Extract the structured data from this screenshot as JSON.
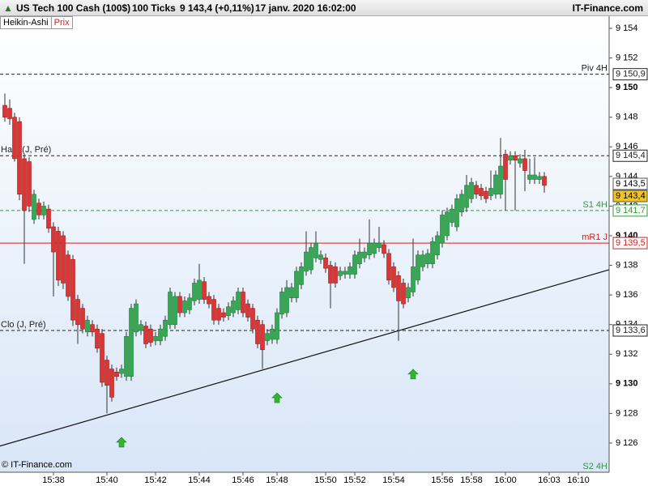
{
  "header": {
    "title": "US Tech 100 Cash (100$)",
    "interval": "100 Ticks",
    "quote": "9 143,4 (+0,11%)",
    "datetime": "17 janv. 2020 16:02:00",
    "brand": "IT-Finance.com",
    "chart_style": "Heikin-Ashi",
    "price_tab": "Prix",
    "copyright": "© IT-Finance.com"
  },
  "chart_data": {
    "type": "candlestick",
    "categories": [
      null,
      null,
      null,
      null,
      null,
      null,
      null,
      null,
      null,
      null,
      "15:38",
      null,
      null,
      null,
      null,
      null,
      null,
      null,
      null,
      null,
      null,
      "15:40",
      null,
      null,
      null,
      null,
      null,
      null,
      null,
      null,
      null,
      "15:42",
      null,
      null,
      null,
      null,
      null,
      null,
      null,
      null,
      "15:44",
      null,
      null,
      null,
      null,
      null,
      null,
      null,
      null,
      "15:46",
      null,
      null,
      null,
      null,
      null,
      null,
      "15:48",
      null,
      null,
      null,
      null,
      null,
      null,
      null,
      null,
      null,
      "15:50",
      null,
      null,
      null,
      null,
      null,
      "15:52",
      null,
      null,
      null,
      null,
      null,
      null,
      null,
      "15:54",
      null,
      null,
      null,
      null,
      null,
      null,
      null,
      null,
      null,
      "15:56",
      null,
      null,
      null,
      null,
      null,
      "15:58",
      null,
      null,
      null,
      null,
      null,
      null,
      "16:00",
      null,
      null,
      null,
      null,
      null,
      null,
      null,
      null,
      "16:03",
      null,
      null,
      null,
      null,
      null,
      "16:10"
    ],
    "open": [
      9148.8,
      9148.6,
      9148.0,
      9147.7,
      9145.2,
      9145.0,
      9141.1,
      9142.2,
      9141.4,
      9141.8,
      9140.6,
      9140.3,
      9140.0,
      9138.7,
      9138.4,
      9135.7,
      9135.1,
      9133.5,
      9134.0,
      9133.7,
      9133.4,
      9131.6,
      9131.0,
      9130.8,
      9130.7,
      9130.5,
      9130.5,
      9133.5,
      9133.6,
      9133.9,
      9133.7,
      9132.9,
      9132.9,
      9133.2,
      9134.0,
      9134.0,
      9135.9,
      9134.8,
      9135.0,
      9135.6,
      9135.7,
      9136.9,
      9135.9,
      9135.7,
      9135.1,
      9134.8,
      9134.6,
      9134.8,
      9135.0,
      9136.2,
      9135.4,
      9135.1,
      9134.3,
      9134.0,
      9132.9,
      9133.0,
      9133.0,
      9134.7,
      9134.8,
      9135.8,
      9135.8,
      9136.7,
      9137.6,
      9137.7,
      9138.5,
      9138.4,
      9138.5,
      9138.0,
      9137.9,
      9137.3,
      9137.4,
      9137.4,
      9137.4,
      9138.1,
      9138.5,
      9138.7,
      9138.8,
      9139.2,
      9139.4,
      9138.8,
      9137.9,
      9137.3,
      9136.8,
      9135.8,
      9136.2,
      9137.0,
      9137.9,
      9138.1,
      9138.1,
      9138.7,
      9139.5,
      9140.0,
      9140.9,
      9140.6,
      9141.6,
      9141.9,
      9142.5,
      9143.4,
      9143.2,
      9143.0,
      9142.7,
      9142.8,
      9142.8,
      9145.5,
      9145.1,
      9145.4,
      9144.9,
      9145.2,
      9143.8,
      9143.8,
      9143.8,
      9144.0,
      null,
      null,
      null,
      null,
      null,
      null,
      null
    ],
    "high": [
      9149.6,
      9149.2,
      9148.3,
      9148.0,
      9145.5,
      9145.3,
      9143.1,
      9142.5,
      9142.3,
      9142.1,
      9140.9,
      9140.6,
      9140.3,
      9139.0,
      9138.7,
      9136.0,
      9135.4,
      9134.6,
      9134.3,
      9134.0,
      9133.7,
      9131.9,
      9131.3,
      9131.1,
      9131.3,
      9133.5,
      9135.4,
      9135.7,
      9134.3,
      9134.2,
      9134.0,
      9133.5,
      9134.0,
      9134.6,
      9136.5,
      9136.2,
      9136.2,
      9135.9,
      9136.1,
      9137.1,
      9138.1,
      9137.2,
      9136.2,
      9136.0,
      9135.4,
      9135.1,
      9135.5,
      9135.9,
      9136.5,
      9136.5,
      9135.7,
      9135.4,
      9134.6,
      9134.3,
      9133.7,
      9134.0,
      9135.1,
      9136.5,
      9137.0,
      9136.8,
      9137.9,
      9138.2,
      9140.3,
      9139.5,
      9140.3,
      9139.0,
      9138.8,
      9138.3,
      9138.2,
      9137.9,
      9137.9,
      9138.2,
      9139.0,
      9139.8,
      9139.2,
      9141.1,
      9139.8,
      9140.6,
      9139.7,
      9139.1,
      9138.2,
      9137.6,
      9137.1,
      9136.8,
      9139.8,
      9139.0,
      9139.0,
      9139.1,
      9139.9,
      9140.3,
      9141.7,
      9141.9,
      9142.1,
      9142.8,
      9143.1,
      9144.1,
      9143.9,
      9143.7,
      9143.5,
      9143.3,
      9144.4,
      9144.4,
      9146.6,
      9145.8,
      9145.7,
      9145.7,
      9145.5,
      9145.8,
      9145.2,
      9145.3,
      9144.3,
      9144.3,
      null,
      null,
      null,
      null,
      null,
      null,
      null
    ],
    "low": [
      9147.7,
      9147.5,
      9145.0,
      9142.4,
      9138.1,
      9141.6,
      9140.8,
      9141.1,
      9141.1,
      9140.2,
      9135.9,
      9136.6,
      9136.4,
      9135.6,
      9133.9,
      9132.7,
      9133.4,
      9133.2,
      9133.2,
      9132.1,
      9129.8,
      9128.0,
      9128.8,
      9130.2,
      9130.4,
      9130.2,
      9130.2,
      9133.2,
      9133.3,
      9132.4,
      9132.5,
      9132.6,
      9132.6,
      9132.9,
      9133.7,
      9133.7,
      9134.5,
      9134.5,
      9134.7,
      9135.3,
      9135.4,
      9135.4,
      9135.1,
      9134.0,
      9134.0,
      9134.2,
      9134.3,
      9134.5,
      9134.7,
      9134.5,
      9134.2,
      9133.4,
      9132.4,
      9131.0,
      9132.6,
      9132.7,
      9132.7,
      9134.4,
      9134.5,
      9135.5,
      9135.5,
      9136.4,
      9137.3,
      9137.4,
      9138.2,
      9138.1,
      9137.5,
      9135.1,
      9136.5,
      9137.0,
      9137.1,
      9137.1,
      9137.1,
      9137.8,
      9138.2,
      9138.4,
      9138.5,
      9138.9,
      9138.5,
      9136.7,
      9136.2,
      9132.9,
      9135.1,
      9135.5,
      9135.9,
      9136.7,
      9137.6,
      9137.8,
      9137.8,
      9138.4,
      9139.2,
      9139.7,
      9140.6,
      9140.3,
      9141.3,
      9141.6,
      9142.2,
      9142.5,
      9142.4,
      9142.2,
      9142.4,
      9142.5,
      9142.5,
      9141.7,
      9144.8,
      9141.7,
      9144.6,
      9143.0,
      9143.5,
      9143.5,
      9143.5,
      9142.9,
      null,
      null,
      null,
      null,
      null,
      null,
      null
    ],
    "close": [
      9148.0,
      9147.9,
      9145.2,
      9142.8,
      9141.7,
      9142.0,
      9142.8,
      9141.4,
      9142.0,
      9140.5,
      9138.9,
      9137.0,
      9136.8,
      9135.9,
      9134.3,
      9134.0,
      9133.7,
      9134.3,
      9133.5,
      9132.4,
      9130.1,
      9129.9,
      9129.1,
      9130.5,
      9131.0,
      9133.2,
      9135.1,
      9135.4,
      9134.0,
      9132.7,
      9132.8,
      9133.2,
      9133.7,
      9134.3,
      9136.2,
      9135.9,
      9134.8,
      9135.6,
      9135.8,
      9136.8,
      9137.0,
      9135.7,
      9135.4,
      9134.3,
      9134.3,
      9134.5,
      9135.2,
      9135.6,
      9136.2,
      9134.8,
      9134.5,
      9133.7,
      9132.7,
      9132.3,
      9133.4,
      9133.7,
      9134.8,
      9136.2,
      9136.5,
      9136.5,
      9137.6,
      9137.9,
      9138.9,
      9139.2,
      9139.5,
      9138.7,
      9137.8,
      9136.8,
      9136.8,
      9137.6,
      9137.6,
      9137.9,
      9138.7,
      9138.9,
      9138.9,
      9139.5,
      9139.5,
      9139.5,
      9138.8,
      9137.0,
      9136.5,
      9135.6,
      9135.4,
      9136.5,
      9137.9,
      9138.7,
      9138.7,
      9138.8,
      9139.6,
      9140.0,
      9141.4,
      9141.6,
      9141.8,
      9142.5,
      9142.8,
      9143.4,
      9143.6,
      9142.8,
      9142.7,
      9142.5,
      9143.2,
      9144.1,
      9144.7,
      9143.8,
      9145.4,
      9145.1,
      9145.2,
      9144.4,
      9144.1,
      9144.1,
      9144.0,
      9143.4,
      null,
      null,
      null,
      null,
      null,
      null,
      null
    ],
    "up_color": "#35a853",
    "down_color": "#dd3434",
    "ylim": [
      9124.03,
      9154.82
    ],
    "yticks": [
      {
        "value": 9126,
        "label": "9 126"
      },
      {
        "value": 9128,
        "label": "9 128"
      },
      {
        "value": 9130,
        "label": "9 130"
      },
      {
        "value": 9132,
        "label": "9 132"
      },
      {
        "value": 9134,
        "label": "9 134"
      },
      {
        "value": 9136,
        "label": "9 136"
      },
      {
        "value": 9138,
        "label": "9 138"
      },
      {
        "value": 9140,
        "label": "9 140"
      },
      {
        "value": 9142,
        "label": "9 142"
      },
      {
        "value": 9144,
        "label": "9 144"
      },
      {
        "value": 9146,
        "label": "9 146"
      },
      {
        "value": 9148,
        "label": "9 148"
      },
      {
        "value": 9150,
        "label": "9 150"
      },
      {
        "value": 9152,
        "label": "9 152"
      },
      {
        "value": 9154,
        "label": "9 154"
      }
    ],
    "levels": [
      {
        "name": "Piv 4H",
        "value": 9150.9,
        "value_label": "9 150,9",
        "color": "#222222",
        "dashed": true,
        "side": "right"
      },
      {
        "name": "Haut (J, Pré)",
        "value": 9145.4,
        "value_label": "9 145,4",
        "color": "#222222",
        "dashed": true,
        "side": "left"
      },
      {
        "name": "S1 4H",
        "value": 9141.7,
        "value_label": "9 141,7",
        "color": "#2e9a3a",
        "dashed": true,
        "side": "right"
      },
      {
        "name": "mR1 J",
        "value": 9139.5,
        "value_label": "9 139,5",
        "color": "#d42020",
        "dashed": false,
        "side": "right"
      },
      {
        "name": "Clo (J, Pré)",
        "value": 9133.6,
        "value_label": "9 133,6",
        "color": "#222222",
        "dashed": true,
        "side": "left"
      }
    ],
    "price_boxes": [
      {
        "value": 9143.5,
        "label": "9 143,5",
        "color": "#ffffff"
      },
      {
        "value": 9143.4,
        "label": "9 143,4",
        "color": "#f5c518"
      }
    ],
    "bottom_note": "S2 4H",
    "trendline": {
      "x": [
        -1,
        124.3
      ],
      "y": [
        9125.8,
        9137.7
      ]
    },
    "signals": {
      "x": [
        24,
        56,
        84
      ],
      "y": [
        9126.0,
        9129.0,
        9130.6
      ],
      "color": "#2eb82e"
    }
  }
}
